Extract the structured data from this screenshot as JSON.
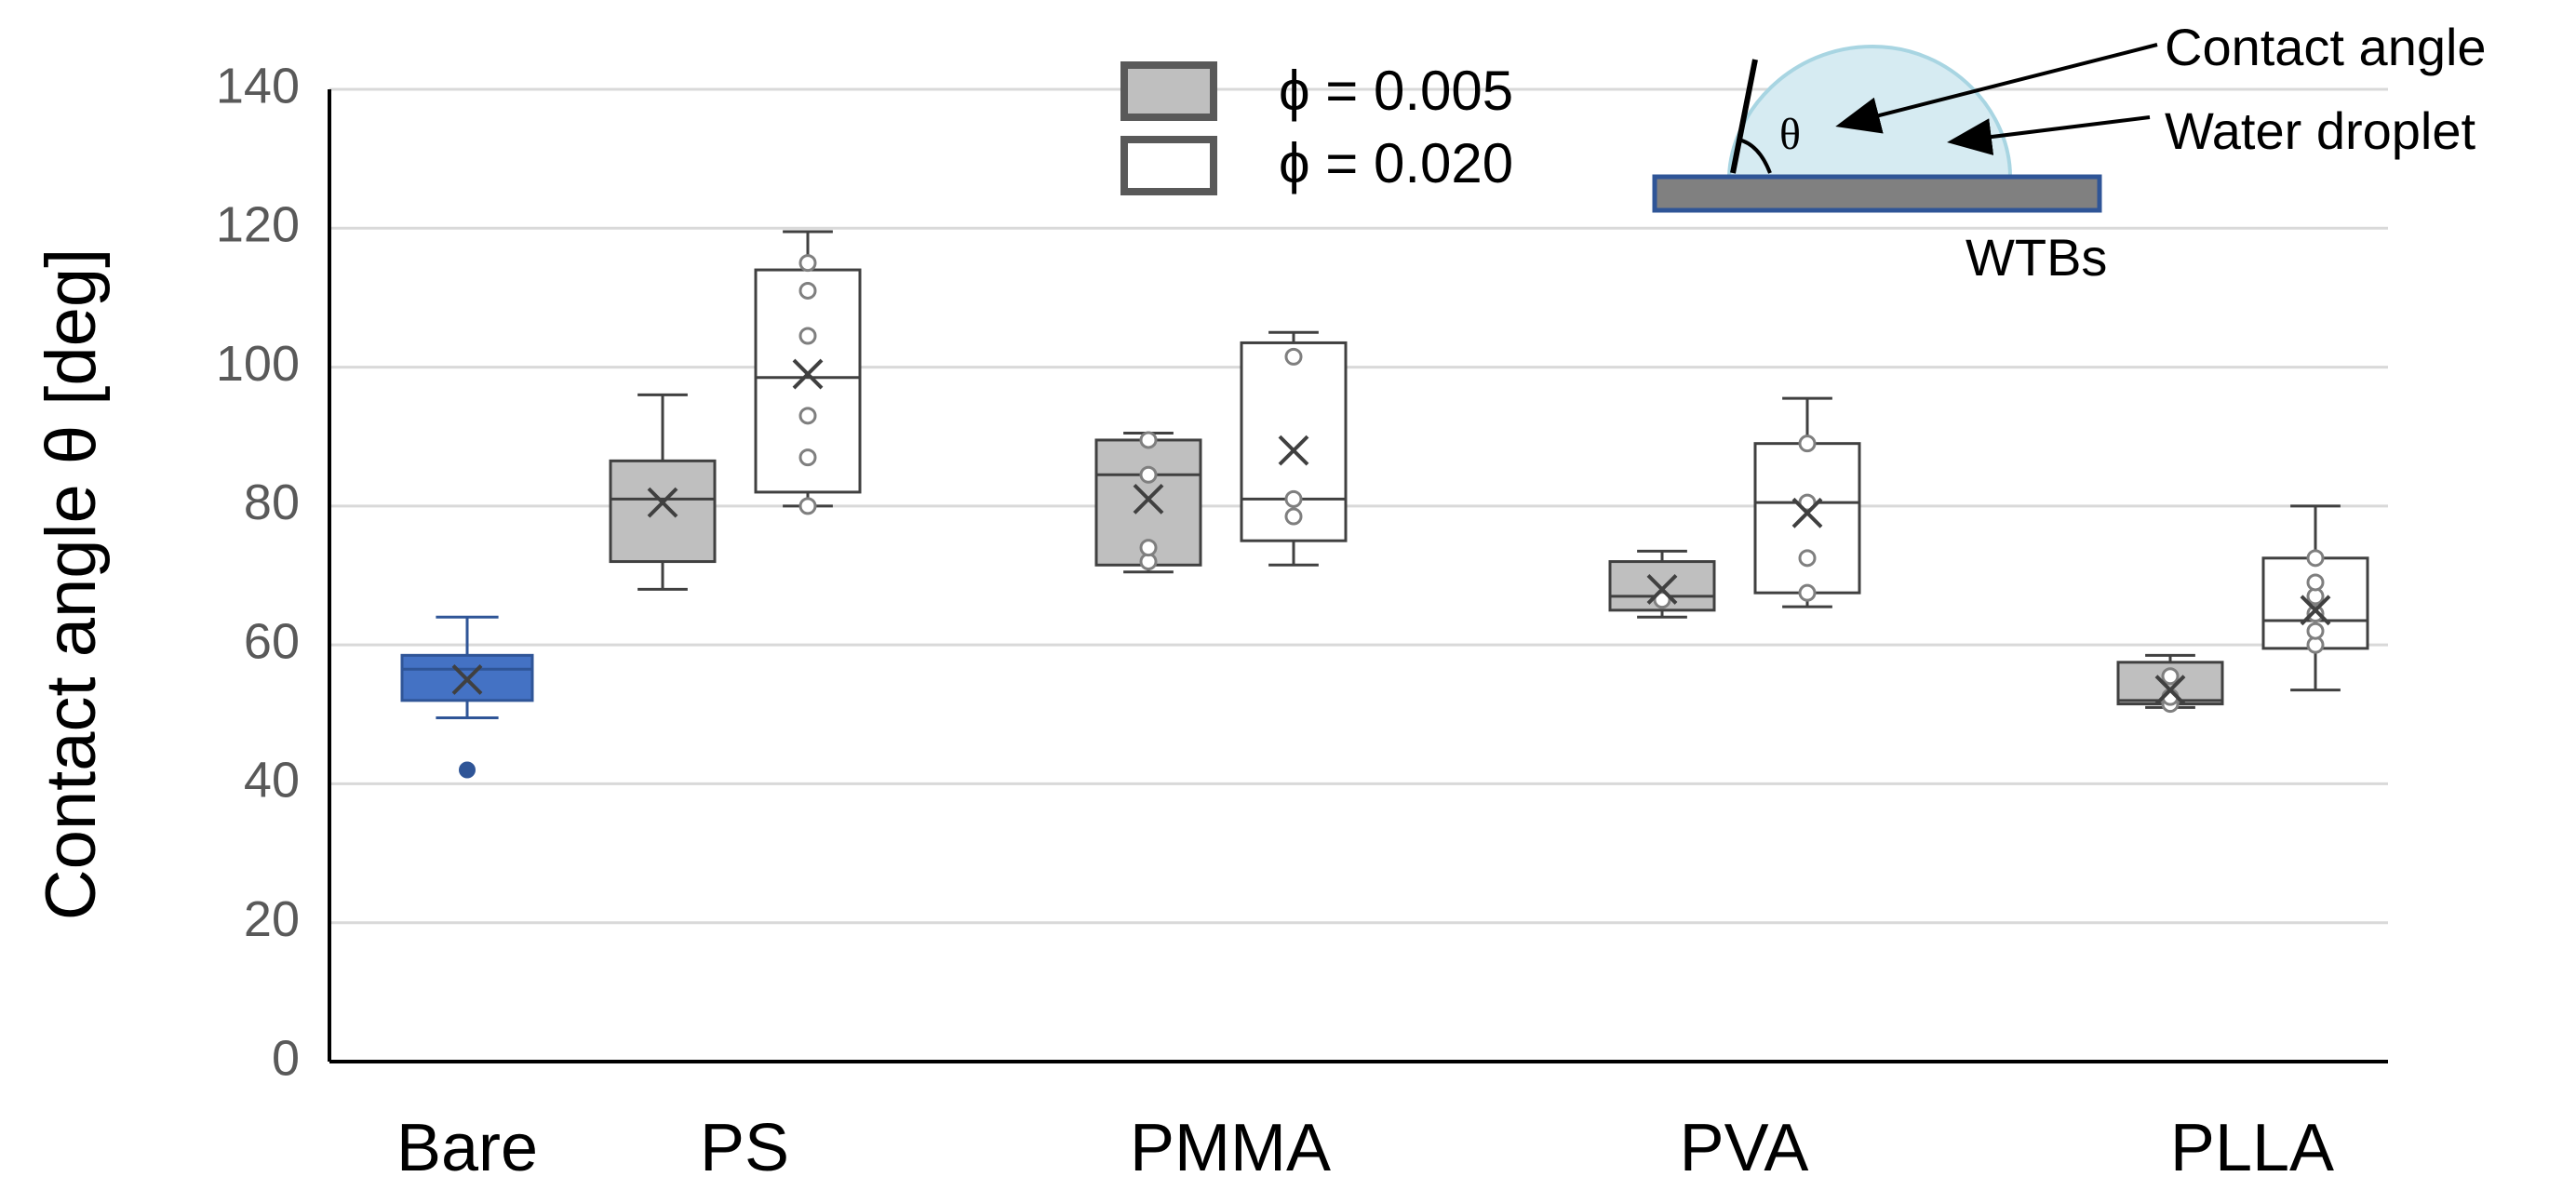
{
  "chart_data": {
    "type": "box",
    "title": "",
    "xlabel": "",
    "ylabel": "Contact angle θ [deg]",
    "ylim": [
      0,
      140
    ],
    "yticks": [
      0,
      20,
      40,
      60,
      80,
      100,
      120,
      140
    ],
    "grid": true,
    "legend_position": "top-center",
    "categories": [
      "Bare",
      "PS",
      "PMMA",
      "PVA",
      "PLLA"
    ],
    "series": [
      {
        "name": "Bare",
        "color": "#4472C4",
        "boxes": [
          {
            "category": "Bare",
            "min": 49.5,
            "q1": 52,
            "median": 56.5,
            "q3": 58.5,
            "max": 64,
            "mean": 55,
            "outliers": [
              42
            ],
            "points": []
          }
        ]
      },
      {
        "name": "ϕ = 0.005",
        "color": "#BFBFBF",
        "boxes": [
          {
            "category": "PS",
            "min": 68,
            "q1": 72,
            "median": 81,
            "q3": 86.5,
            "max": 96,
            "mean": 80.5,
            "outliers": [],
            "points": []
          },
          {
            "category": "PMMA",
            "min": 70.5,
            "q1": 71.5,
            "median": 84.5,
            "q3": 89.5,
            "max": 90.5,
            "mean": 81,
            "outliers": [],
            "points": [
              72,
              74,
              84.5,
              89.5
            ]
          },
          {
            "category": "PVA",
            "min": 64,
            "q1": 65,
            "median": 67,
            "q3": 72,
            "max": 73.5,
            "mean": 68,
            "outliers": [],
            "points": [
              66.5
            ]
          },
          {
            "category": "PLLA",
            "min": 51,
            "q1": 51.5,
            "median": 52,
            "q3": 57.5,
            "max": 58.5,
            "mean": 53.5,
            "outliers": [],
            "points": [
              51.5,
              52.5,
              55.5
            ]
          }
        ]
      },
      {
        "name": "ϕ = 0.020",
        "color": "#FFFFFF",
        "boxes": [
          {
            "category": "PS",
            "min": 80,
            "q1": 82,
            "median": 98.5,
            "q3": 114,
            "max": 119.5,
            "mean": 99,
            "outliers": [],
            "points": [
              80,
              87,
              93,
              104.5,
              111,
              115
            ]
          },
          {
            "category": "PMMA",
            "min": 71.5,
            "q1": 75,
            "median": 81,
            "q3": 103.5,
            "max": 105,
            "mean": 88,
            "outliers": [],
            "points": [
              78.5,
              81,
              101.5
            ]
          },
          {
            "category": "PVA",
            "min": 65.5,
            "q1": 67.5,
            "median": 80.5,
            "q3": 89,
            "max": 95.5,
            "mean": 79,
            "outliers": [],
            "points": [
              67.5,
              72.5,
              80.5,
              89
            ]
          },
          {
            "category": "PLLA",
            "min": 53.5,
            "q1": 59.5,
            "median": 63.5,
            "q3": 72.5,
            "max": 80,
            "mean": 65,
            "outliers": [],
            "points": [
              60,
              62,
              64.5,
              67,
              69,
              72.5
            ]
          }
        ]
      }
    ],
    "legend": [
      {
        "label": "ϕ = 0.005",
        "fill": "#BFBFBF"
      },
      {
        "label": "ϕ = 0.020",
        "fill": "#FFFFFF"
      }
    ],
    "annotations": {
      "contact_angle": "Contact angle",
      "water_droplet": "Water droplet",
      "substrate": "WTBs",
      "theta_symbol": "θ"
    }
  }
}
